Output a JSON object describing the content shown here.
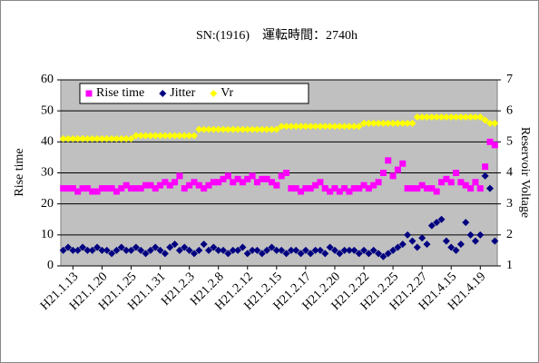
{
  "chart_data": {
    "type": "scatter",
    "title": "SN:(1916)　運転時間：2740h",
    "ylabel": "Rise time",
    "y2label": "Reservoir Voltage",
    "ylim": [
      0,
      60
    ],
    "yticks": [
      0,
      10,
      20,
      30,
      40,
      50,
      60
    ],
    "y2lim": [
      1,
      7
    ],
    "y2ticks": [
      1,
      2,
      3,
      4,
      5,
      6,
      7
    ],
    "grid": true,
    "legend": "upper left",
    "categories": [
      null,
      null,
      "H21.1.13",
      null,
      null,
      null,
      null,
      null,
      "H21.1.20",
      null,
      null,
      null,
      null,
      null,
      "H21.1.25",
      null,
      null,
      null,
      null,
      null,
      "H21.1.31",
      null,
      null,
      null,
      null,
      null,
      "H21.2.3",
      null,
      null,
      null,
      null,
      null,
      "H21.2.8",
      null,
      null,
      null,
      null,
      null,
      "H21.2.12",
      null,
      null,
      null,
      null,
      null,
      "H21.2.15",
      null,
      null,
      null,
      null,
      null,
      "H21.2.17",
      null,
      null,
      null,
      null,
      null,
      "H21.2.20",
      null,
      null,
      null,
      null,
      null,
      "H21.2.22",
      null,
      null,
      null,
      null,
      null,
      "H21.2.25",
      null,
      null,
      null,
      null,
      null,
      "H21.2.27",
      null,
      null,
      null,
      null,
      null,
      "H21.4.15",
      null,
      null,
      null,
      null,
      null,
      "H21.4.19",
      null,
      null,
      null
    ],
    "series": [
      {
        "name": "Rise time",
        "color": "#ff00ff",
        "marker": "square",
        "values": [
          25,
          25,
          25,
          24,
          25,
          25,
          24,
          24,
          25,
          25,
          25,
          24,
          25,
          26,
          25,
          25,
          25,
          26,
          26,
          25,
          26,
          27,
          26,
          27,
          29,
          25,
          26,
          27,
          26,
          25,
          26,
          27,
          27,
          28,
          29,
          27,
          28,
          27,
          28,
          29,
          27,
          28,
          28,
          27,
          26,
          29,
          30,
          25,
          25,
          24,
          25,
          25,
          26,
          27,
          25,
          24,
          25,
          24,
          25,
          24,
          25,
          25,
          26,
          25,
          26,
          27,
          30,
          34,
          29,
          31,
          33,
          25,
          25,
          25,
          26,
          25,
          25,
          24,
          27,
          28,
          27,
          30,
          27,
          26,
          25,
          27,
          25,
          32,
          40,
          39
        ]
      },
      {
        "name": "Jitter",
        "color": "#000080",
        "marker": "diamond",
        "values": [
          5,
          6,
          5,
          5,
          6,
          5,
          5,
          6,
          5,
          5,
          4,
          5,
          6,
          5,
          5,
          6,
          5,
          4,
          5,
          6,
          5,
          4,
          6,
          7,
          5,
          6,
          5,
          4,
          5,
          7,
          5,
          6,
          5,
          5,
          4,
          5,
          5,
          6,
          4,
          5,
          5,
          4,
          5,
          6,
          5,
          5,
          4,
          5,
          5,
          4,
          5,
          4,
          5,
          5,
          4,
          6,
          5,
          4,
          5,
          5,
          5,
          4,
          5,
          4,
          5,
          4,
          3,
          4,
          5,
          6,
          7,
          10,
          8,
          6,
          9,
          7,
          13,
          14,
          15,
          8,
          6,
          5,
          7,
          14,
          10,
          8,
          10,
          29,
          25,
          8
        ]
      },
      {
        "name": "Vr",
        "color": "#ffff00",
        "marker": "diamond",
        "axis": "y2",
        "values": [
          5.1,
          5.1,
          5.1,
          5.1,
          5.1,
          5.1,
          5.1,
          5.1,
          5.1,
          5.1,
          5.1,
          5.1,
          5.1,
          5.1,
          5.1,
          5.2,
          5.2,
          5.2,
          5.2,
          5.2,
          5.2,
          5.2,
          5.2,
          5.2,
          5.2,
          5.2,
          5.2,
          5.2,
          5.4,
          5.4,
          5.4,
          5.4,
          5.4,
          5.4,
          5.4,
          5.4,
          5.4,
          5.4,
          5.4,
          5.4,
          5.4,
          5.4,
          5.4,
          5.4,
          5.4,
          5.5,
          5.5,
          5.5,
          5.5,
          5.5,
          5.5,
          5.5,
          5.5,
          5.5,
          5.5,
          5.5,
          5.5,
          5.5,
          5.5,
          5.5,
          5.5,
          5.5,
          5.6,
          5.6,
          5.6,
          5.6,
          5.6,
          5.6,
          5.6,
          5.6,
          5.6,
          5.6,
          5.6,
          5.8,
          5.8,
          5.8,
          5.8,
          5.8,
          5.8,
          5.8,
          5.8,
          5.8,
          5.8,
          5.8,
          5.8,
          5.8,
          5.8,
          5.7,
          5.6,
          5.6
        ]
      }
    ]
  }
}
